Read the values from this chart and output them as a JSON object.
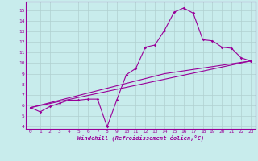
{
  "bg_color": "#c8ecec",
  "line_color": "#990099",
  "grid_color": "#b0d0d0",
  "xlim": [
    -0.5,
    23.5
  ],
  "ylim": [
    3.8,
    15.8
  ],
  "yticks": [
    4,
    5,
    6,
    7,
    8,
    9,
    10,
    11,
    12,
    13,
    14,
    15
  ],
  "xticks": [
    0,
    1,
    2,
    3,
    4,
    5,
    6,
    7,
    8,
    9,
    10,
    11,
    12,
    13,
    14,
    15,
    16,
    17,
    18,
    19,
    20,
    21,
    22,
    23
  ],
  "xlabel": "Windchill (Refroidissement éolien,°C)",
  "series1_x": [
    0,
    1,
    2,
    3,
    4,
    5,
    6,
    7,
    8,
    9,
    10,
    11,
    12,
    13,
    14,
    15,
    16,
    17,
    18,
    19,
    20,
    21,
    22,
    23
  ],
  "series1_y": [
    5.8,
    5.4,
    5.9,
    6.2,
    6.5,
    6.5,
    6.6,
    6.6,
    4.0,
    6.5,
    8.9,
    9.5,
    11.5,
    11.7,
    13.1,
    14.8,
    15.2,
    14.7,
    12.2,
    12.1,
    11.5,
    11.4,
    10.5,
    10.2
  ],
  "series2_x": [
    0,
    23
  ],
  "series2_y": [
    5.8,
    10.2
  ],
  "series3_x": [
    0,
    14,
    23
  ],
  "series3_y": [
    5.8,
    9.0,
    10.2
  ]
}
